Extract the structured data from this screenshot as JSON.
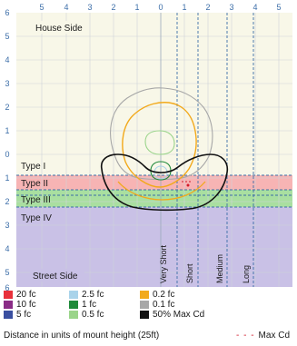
{
  "labels": {
    "house_side": "House Side",
    "street_side": "Street Side",
    "type_i": "Type I",
    "type_ii": "Type II",
    "type_iii": "Type III",
    "type_iv": "Type IV",
    "very_short": "Very Short",
    "short": "Short",
    "medium": "Medium",
    "long": "Long"
  },
  "top_axis": [
    "5",
    "4",
    "3",
    "2",
    "1",
    "0",
    "1",
    "2",
    "3",
    "4",
    "5"
  ],
  "left_axis": [
    "6",
    "5",
    "4",
    "3",
    "2",
    "1",
    "0",
    "1",
    "2",
    "3",
    "4",
    "5",
    "6"
  ],
  "legend": [
    {
      "label": "20 fc",
      "color": "#e8303b"
    },
    {
      "label": "10 fc",
      "color": "#8a2c86"
    },
    {
      "label": "5 fc",
      "color": "#3a4fa0"
    },
    {
      "label": "2.5 fc",
      "color": "#a9d3ea"
    },
    {
      "label": "1 fc",
      "color": "#1f8a3a"
    },
    {
      "label": "0.5 fc",
      "color": "#9ad48a"
    },
    {
      "label": "0.2 fc",
      "color": "#f2a91b"
    },
    {
      "label": "0.1 fc",
      "color": "#a7a7a7"
    },
    {
      "label": "50% Max Cd",
      "color": "#111111"
    }
  ],
  "caption": "Distance in units of mount height (25ft)",
  "max_cd_label": "Max Cd",
  "colors": {
    "background": "#f8f7e8",
    "type_ii_band": "#f7b4b4",
    "type_iii_band": "#a9dfa0",
    "type_iv_region": "#c9c1e6",
    "grid": "#cfd3d8",
    "axis": "#3c6ea8",
    "max_cd": "#d11a2a"
  }
}
